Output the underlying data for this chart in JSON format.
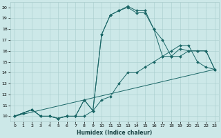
{
  "xlabel": "Humidex (Indice chaleur)",
  "bg_color": "#cce8e8",
  "grid_color": "#a8cccc",
  "line_color": "#1a6666",
  "xlim": [
    -0.5,
    23.5
  ],
  "ylim": [
    9.5,
    20.5
  ],
  "xticks": [
    0,
    1,
    2,
    3,
    4,
    5,
    6,
    7,
    8,
    9,
    10,
    11,
    12,
    13,
    14,
    15,
    16,
    17,
    18,
    19,
    20,
    21,
    22,
    23
  ],
  "yticks": [
    10,
    11,
    12,
    13,
    14,
    15,
    16,
    17,
    18,
    19,
    20
  ],
  "line1_x": [
    0,
    1,
    2,
    3,
    4,
    5,
    6,
    7,
    8,
    9,
    10,
    11,
    12,
    13,
    14,
    15,
    16,
    17,
    18,
    19,
    20,
    21,
    22,
    23
  ],
  "line1_y": [
    10.0,
    10.3,
    10.6,
    10.0,
    10.0,
    9.8,
    10.0,
    10.0,
    10.0,
    10.5,
    11.5,
    11.8,
    13.0,
    14.0,
    14.0,
    14.5,
    15.0,
    15.5,
    16.0,
    16.5,
    16.5,
    15.0,
    14.5,
    14.3
  ],
  "line2_x": [
    0,
    1,
    2,
    3,
    4,
    5,
    6,
    7,
    8,
    9,
    10,
    11,
    12,
    13,
    14,
    15,
    16,
    17,
    18,
    19,
    20,
    21,
    22,
    23
  ],
  "line2_y": [
    10.0,
    10.3,
    10.6,
    10.0,
    10.0,
    9.8,
    10.0,
    10.0,
    11.5,
    10.5,
    17.5,
    19.3,
    19.7,
    20.1,
    19.7,
    19.7,
    18.0,
    15.5,
    15.5,
    16.2,
    16.0,
    16.0,
    16.0,
    14.3
  ],
  "line3_x": [
    0,
    1,
    2,
    3,
    4,
    5,
    6,
    7,
    8,
    9,
    10,
    11,
    12,
    13,
    14,
    15,
    16,
    17,
    18,
    19,
    20,
    21,
    22,
    23
  ],
  "line3_y": [
    10.0,
    10.3,
    10.6,
    10.0,
    10.0,
    9.8,
    10.0,
    10.0,
    11.5,
    10.5,
    17.5,
    19.3,
    19.7,
    20.0,
    19.5,
    19.5,
    18.0,
    17.0,
    15.5,
    15.5,
    16.0,
    16.0,
    16.0,
    14.3
  ],
  "line4_x": [
    0,
    23
  ],
  "line4_y": [
    10.0,
    14.3
  ],
  "figsize": [
    3.2,
    2.0
  ],
  "dpi": 100
}
